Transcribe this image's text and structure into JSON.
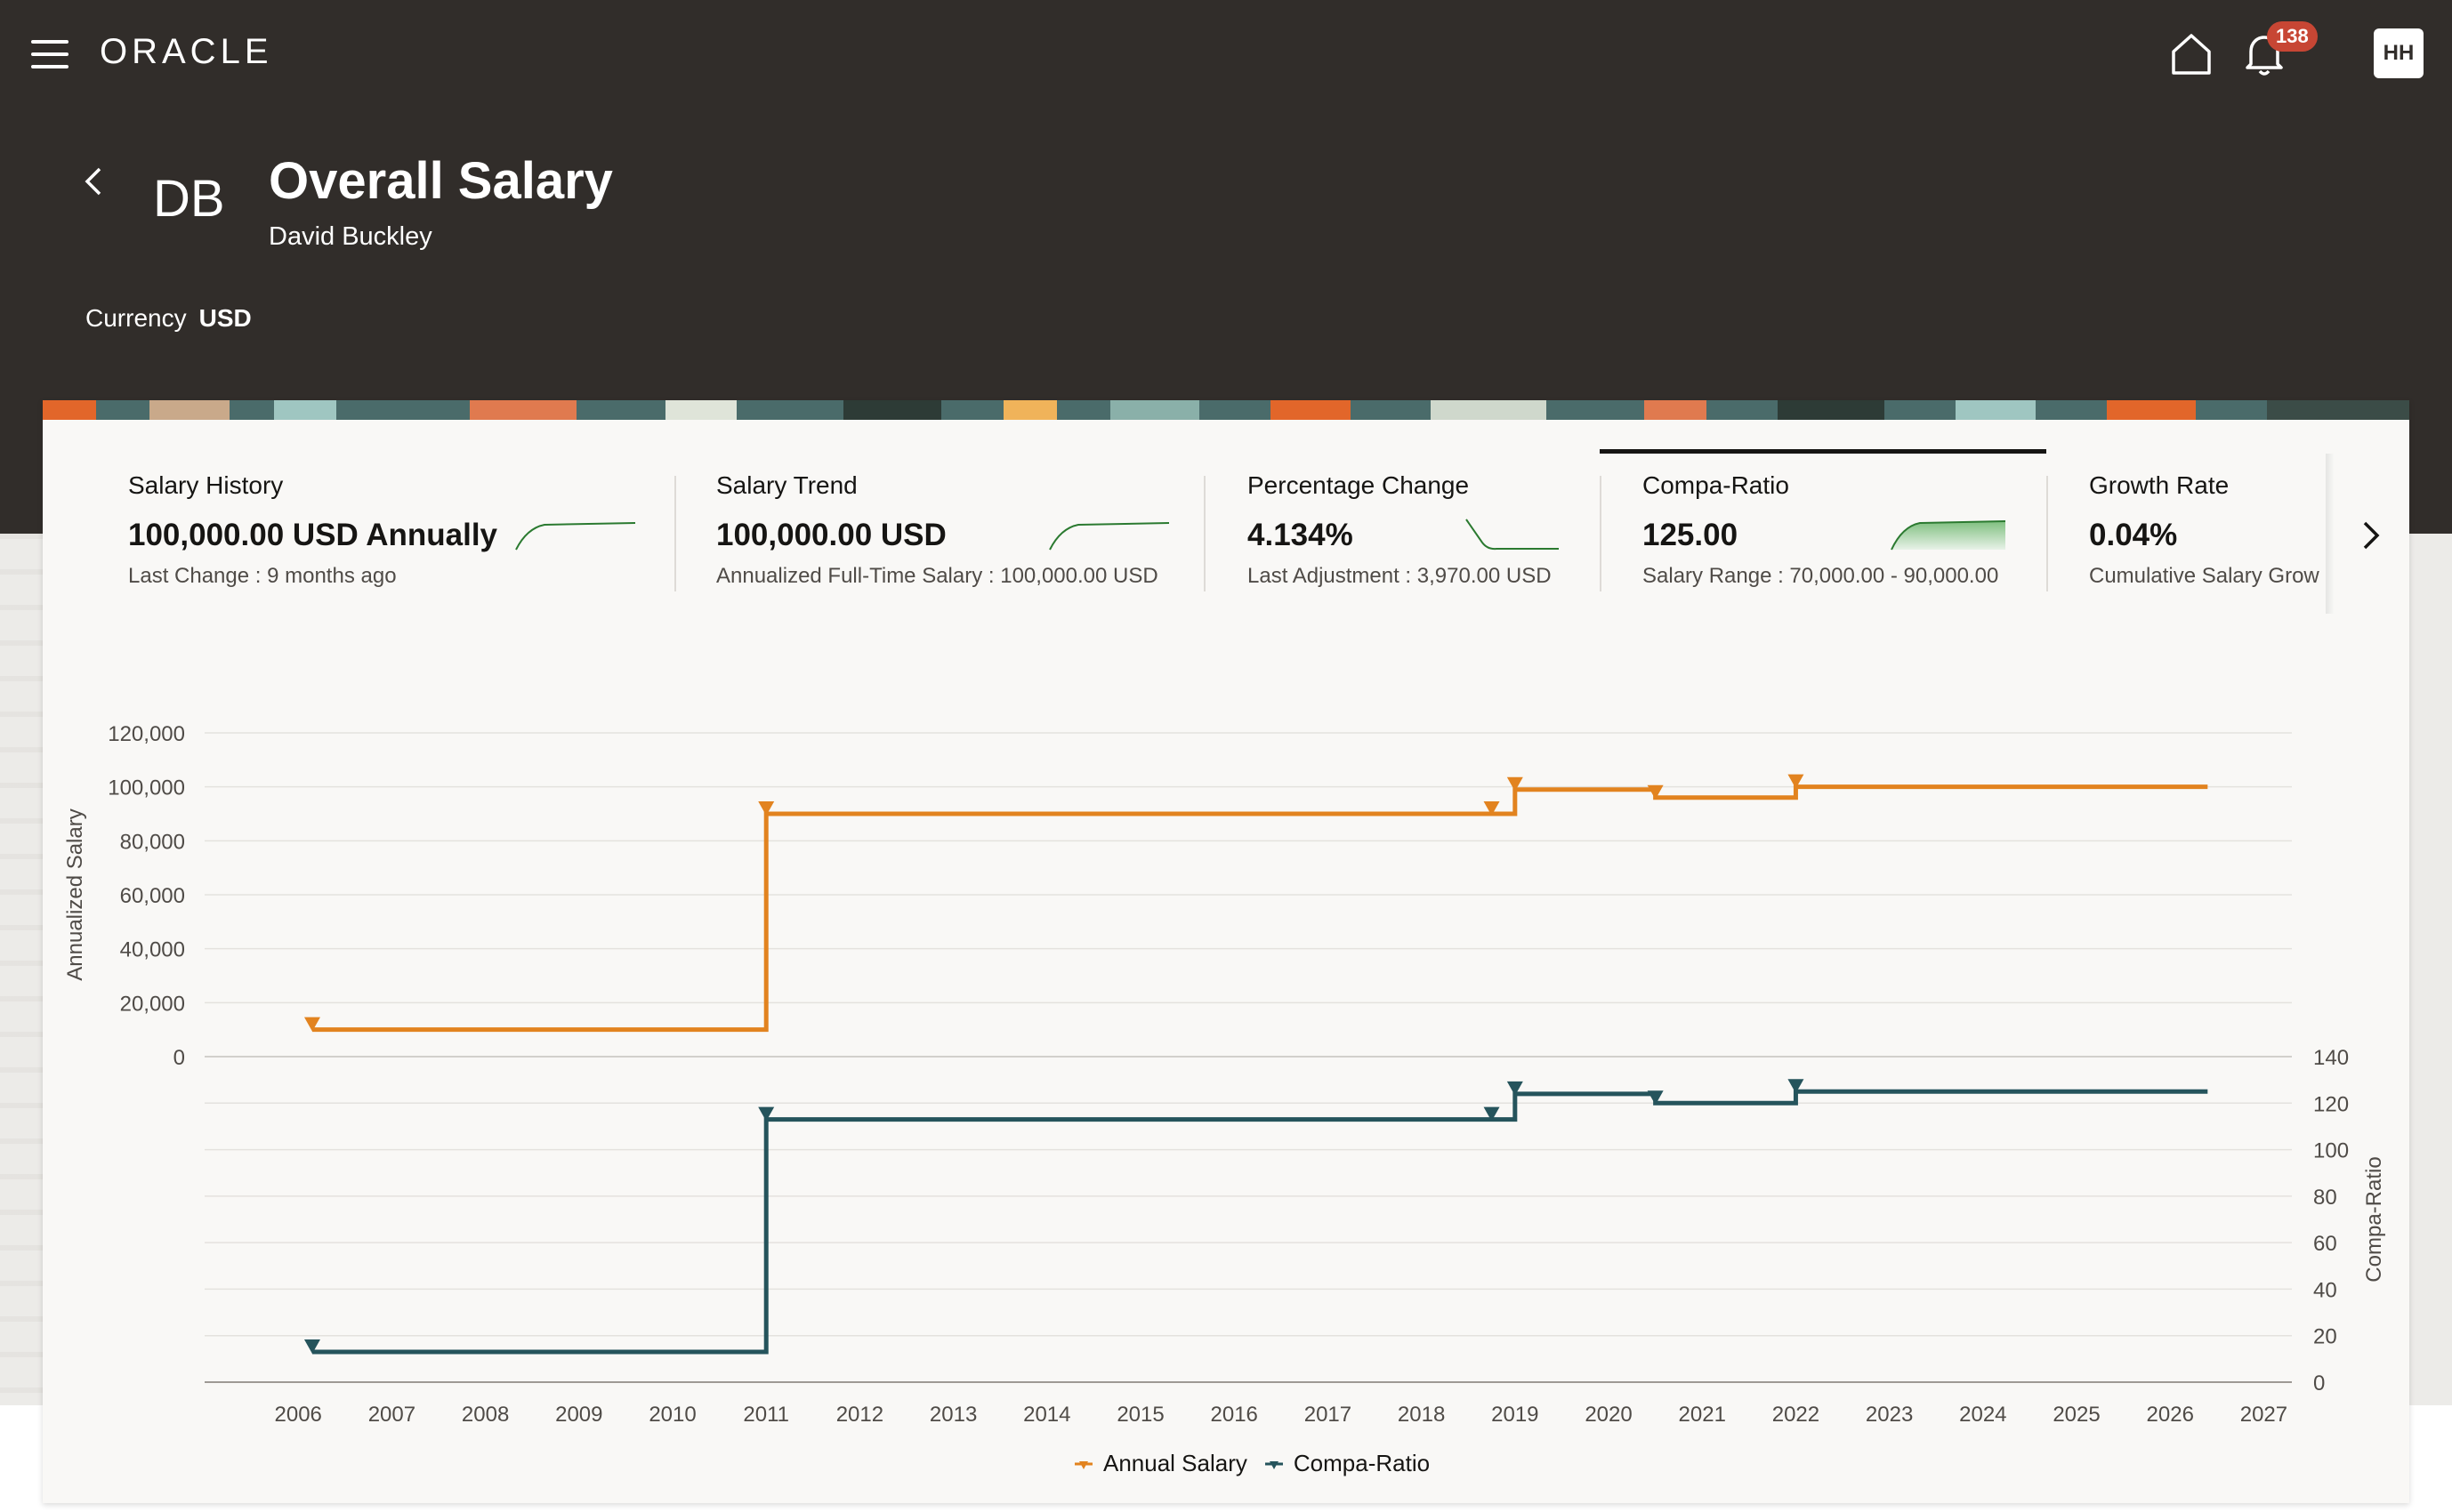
{
  "app": {
    "brand": "ORACLE",
    "notification_count": "138",
    "user_initials": "HH"
  },
  "header": {
    "initials": "DB",
    "title": "Overall Salary",
    "person": "David Buckley",
    "currency_label": "Currency",
    "currency_value": "USD"
  },
  "metrics": [
    {
      "title": "Salary History",
      "value": "100,000.00 USD Annually",
      "sub": "Last Change : 9 months ago"
    },
    {
      "title": "Salary Trend",
      "value": "100,000.00 USD",
      "sub": "Annualized Full-Time Salary : 100,000.00 USD"
    },
    {
      "title": "Percentage Change",
      "value": "4.134%",
      "sub": "Last Adjustment : 3,970.00 USD"
    },
    {
      "title": "Compa-Ratio",
      "value": "125.00",
      "sub": "Salary Range : 70,000.00 - 90,000.00"
    },
    {
      "title": "Growth Rate",
      "value": "0.04%",
      "sub": "Cumulative Salary Grow"
    }
  ],
  "colors": {
    "salary": "#e2831f",
    "compa": "#25545c",
    "header_bg": "#312d2a"
  },
  "chart_data": {
    "type": "line",
    "step": true,
    "x_ticks": [
      "2006",
      "2007",
      "2008",
      "2009",
      "2010",
      "2011",
      "2012",
      "2013",
      "2014",
      "2015",
      "2016",
      "2017",
      "2018",
      "2019",
      "2020",
      "2021",
      "2022",
      "2023",
      "2024",
      "2025",
      "2026",
      "2027"
    ],
    "xlim": [
      2005.0,
      2027.3
    ],
    "panels": [
      {
        "ylabel": "Annualized Salary",
        "yaxis": "left",
        "ylim": [
          0,
          120000
        ],
        "y_ticks": [
          "0",
          "20,000",
          "40,000",
          "60,000",
          "80,000",
          "100,000",
          "120,000"
        ],
        "series": [
          {
            "name": "Annual Salary",
            "x": [
              2006.15,
              2011.0,
              2018.75,
              2019.0,
              2020.5,
              2022.0,
              2026.4
            ],
            "y": [
              10000,
              90000,
              90000,
              99000,
              96000,
              100000,
              100000
            ]
          }
        ]
      },
      {
        "ylabel": "Compa-Ratio",
        "yaxis": "right",
        "ylim": [
          0,
          140
        ],
        "y_ticks": [
          "0",
          "20",
          "40",
          "60",
          "80",
          "100",
          "120",
          "140"
        ],
        "series": [
          {
            "name": "Compa-Ratio",
            "x": [
              2006.15,
              2011.0,
              2018.75,
              2019.0,
              2020.5,
              2022.0,
              2026.4
            ],
            "y": [
              13,
              113,
              113,
              124,
              120,
              125,
              125
            ]
          }
        ]
      }
    ],
    "legend": [
      "Annual Salary",
      "Compa-Ratio"
    ],
    "legend_position": "bottom"
  }
}
